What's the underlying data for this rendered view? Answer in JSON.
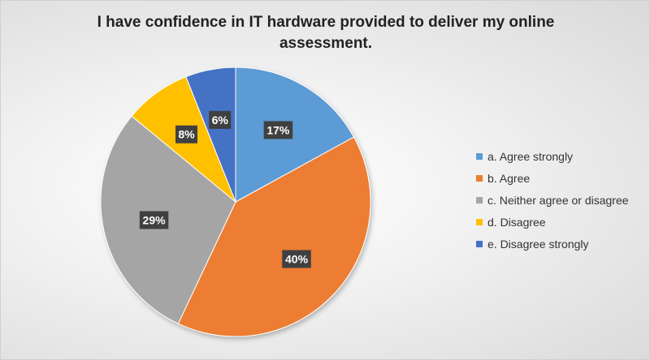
{
  "chart_data": {
    "type": "pie",
    "title": "I have confidence in IT hardware provided to deliver my online assessment.",
    "categories": [
      "a. Agree strongly",
      "b. Agree",
      "c. Neither agree or disagree",
      "d. Disagree",
      "e. Disagree strongly"
    ],
    "values": [
      17,
      40,
      29,
      8,
      6
    ],
    "data_labels": [
      "17%",
      "40%",
      "29%",
      "8%",
      "6%"
    ],
    "colors": [
      "#5b9bd5",
      "#ed7d31",
      "#a5a5a5",
      "#ffc000",
      "#4472c4"
    ],
    "legend_position": "right",
    "start_angle": "12 o'clock, clockwise"
  }
}
